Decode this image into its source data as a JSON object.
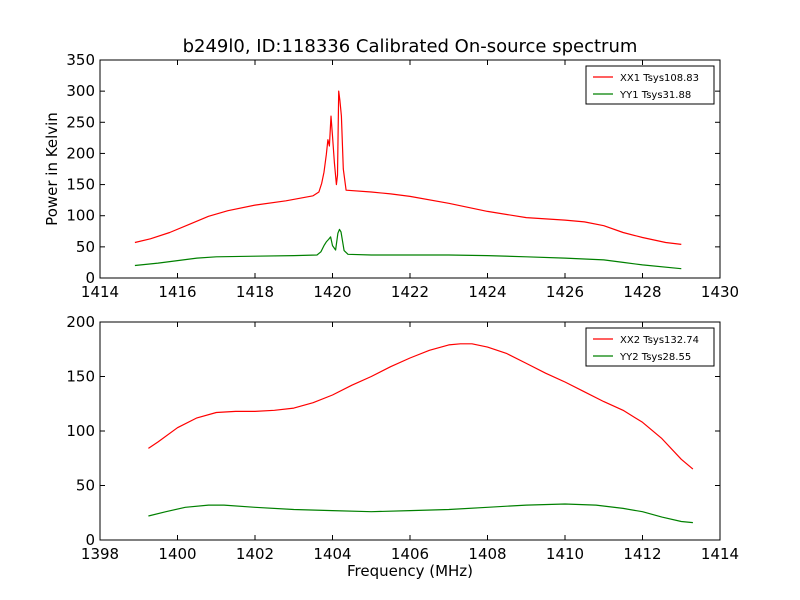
{
  "chart_data": [
    {
      "type": "line",
      "title": "b249l0, ID:118336 Calibrated On-source spectrum",
      "xlabel": "",
      "ylabel": "Power in Kelvin",
      "xlim": [
        1414,
        1430
      ],
      "ylim": [
        0,
        350
      ],
      "xticks": [
        1414,
        1416,
        1418,
        1420,
        1422,
        1424,
        1426,
        1428,
        1430
      ],
      "yticks": [
        0,
        50,
        100,
        150,
        200,
        250,
        300,
        350
      ],
      "legend_position": "top-right",
      "series": [
        {
          "name": "XX1 Tsys108.83",
          "color": "#ff0000",
          "points": [
            [
              1414.9,
              57
            ],
            [
              1415.3,
              63
            ],
            [
              1415.8,
              73
            ],
            [
              1416.3,
              86
            ],
            [
              1416.8,
              99
            ],
            [
              1417.3,
              108
            ],
            [
              1418.0,
              117
            ],
            [
              1418.8,
              124
            ],
            [
              1419.5,
              132
            ],
            [
              1419.65,
              138
            ],
            [
              1419.72,
              152
            ],
            [
              1419.78,
              170
            ],
            [
              1419.84,
              198
            ],
            [
              1419.88,
              222
            ],
            [
              1419.92,
              212
            ],
            [
              1419.96,
              260
            ],
            [
              1420.0,
              228
            ],
            [
              1420.05,
              185
            ],
            [
              1420.1,
              150
            ],
            [
              1420.13,
              165
            ],
            [
              1420.16,
              300
            ],
            [
              1420.19,
              285
            ],
            [
              1420.23,
              260
            ],
            [
              1420.28,
              175
            ],
            [
              1420.35,
              141
            ],
            [
              1421.0,
              138
            ],
            [
              1421.5,
              135
            ],
            [
              1422.0,
              131
            ],
            [
              1423.0,
              120
            ],
            [
              1424.0,
              107
            ],
            [
              1425.0,
              97
            ],
            [
              1426.0,
              93
            ],
            [
              1426.5,
              90
            ],
            [
              1427.0,
              84
            ],
            [
              1427.5,
              73
            ],
            [
              1428.0,
              65
            ],
            [
              1428.6,
              57
            ],
            [
              1429.0,
              54
            ]
          ]
        },
        {
          "name": "YY1 Tsys31.88",
          "color": "#008000",
          "points": [
            [
              1414.9,
              20
            ],
            [
              1415.5,
              24
            ],
            [
              1416.0,
              28
            ],
            [
              1416.5,
              32
            ],
            [
              1417.0,
              34
            ],
            [
              1418.0,
              35
            ],
            [
              1419.0,
              36
            ],
            [
              1419.6,
              37
            ],
            [
              1419.7,
              42
            ],
            [
              1419.78,
              52
            ],
            [
              1419.84,
              58
            ],
            [
              1419.9,
              62
            ],
            [
              1419.95,
              66
            ],
            [
              1420.0,
              52
            ],
            [
              1420.08,
              45
            ],
            [
              1420.14,
              72
            ],
            [
              1420.18,
              78
            ],
            [
              1420.22,
              74
            ],
            [
              1420.3,
              44
            ],
            [
              1420.4,
              38
            ],
            [
              1421.0,
              37
            ],
            [
              1422.0,
              37
            ],
            [
              1423.0,
              37
            ],
            [
              1424.0,
              36
            ],
            [
              1425.0,
              34
            ],
            [
              1426.0,
              32
            ],
            [
              1427.0,
              29
            ],
            [
              1427.5,
              25
            ],
            [
              1428.0,
              21
            ],
            [
              1429.0,
              15
            ]
          ]
        }
      ]
    },
    {
      "type": "line",
      "title": "",
      "xlabel": "Frequency (MHz)",
      "ylabel": "",
      "xlim": [
        1398,
        1414
      ],
      "ylim": [
        0,
        200
      ],
      "xticks": [
        1398,
        1400,
        1402,
        1404,
        1406,
        1408,
        1410,
        1412,
        1414
      ],
      "yticks": [
        0,
        50,
        100,
        150,
        200
      ],
      "legend_position": "top-right",
      "series": [
        {
          "name": "XX2 Tsys132.74",
          "color": "#ff0000",
          "points": [
            [
              1399.25,
              84
            ],
            [
              1399.5,
              90
            ],
            [
              1400.0,
              103
            ],
            [
              1400.5,
              112
            ],
            [
              1401.0,
              117
            ],
            [
              1401.5,
              118
            ],
            [
              1402.0,
              118
            ],
            [
              1402.5,
              119
            ],
            [
              1403.0,
              121
            ],
            [
              1403.5,
              126
            ],
            [
              1404.0,
              133
            ],
            [
              1404.5,
              142
            ],
            [
              1405.0,
              150
            ],
            [
              1405.5,
              159
            ],
            [
              1406.0,
              167
            ],
            [
              1406.5,
              174
            ],
            [
              1407.0,
              179
            ],
            [
              1407.3,
              180
            ],
            [
              1407.6,
              180
            ],
            [
              1408.0,
              177
            ],
            [
              1408.5,
              171
            ],
            [
              1409.0,
              162
            ],
            [
              1409.5,
              153
            ],
            [
              1410.0,
              145
            ],
            [
              1410.5,
              136
            ],
            [
              1411.0,
              127
            ],
            [
              1411.5,
              119
            ],
            [
              1412.0,
              108
            ],
            [
              1412.5,
              93
            ],
            [
              1413.0,
              74
            ],
            [
              1413.3,
              65
            ]
          ]
        },
        {
          "name": "YY2 Tsys28.55",
          "color": "#008000",
          "points": [
            [
              1399.25,
              22
            ],
            [
              1399.7,
              26
            ],
            [
              1400.2,
              30
            ],
            [
              1400.8,
              32
            ],
            [
              1401.2,
              32
            ],
            [
              1402.0,
              30
            ],
            [
              1403.0,
              28
            ],
            [
              1404.0,
              27
            ],
            [
              1405.0,
              26
            ],
            [
              1406.0,
              27
            ],
            [
              1407.0,
              28
            ],
            [
              1408.0,
              30
            ],
            [
              1409.0,
              32
            ],
            [
              1410.0,
              33
            ],
            [
              1410.8,
              32
            ],
            [
              1411.5,
              29
            ],
            [
              1412.0,
              26
            ],
            [
              1412.5,
              21
            ],
            [
              1413.0,
              17
            ],
            [
              1413.3,
              16
            ]
          ]
        }
      ]
    }
  ]
}
